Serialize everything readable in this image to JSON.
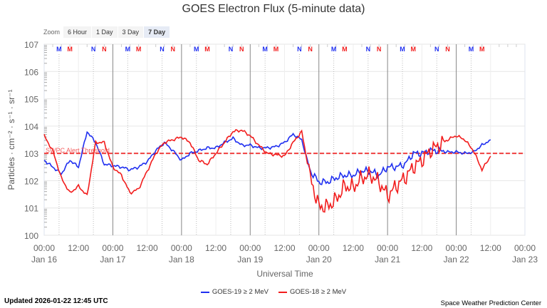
{
  "title": "GOES Electron Flux (5-minute data)",
  "zoom": {
    "label": "Zoom",
    "options": [
      "6 Hour",
      "1 Day",
      "3 Day",
      "7 Day"
    ],
    "selected": "7 Day"
  },
  "updated": "Updated 2026-01-22 12:45 UTC",
  "credit": "Space Weather Prediction Center",
  "colors": {
    "goes19": "#1f2ff0",
    "goes18": "#f21d1d",
    "threshold": "#f04040"
  },
  "chart_data": {
    "type": "line",
    "title": "GOES Electron Flux (5-minute data)",
    "xlabel": "Universal Time",
    "ylabel": "Particles · cm⁻² · s⁻¹ · sr⁻¹",
    "yscale": "log",
    "ylim_log10": [
      0,
      7
    ],
    "ytick_labels": [
      "100",
      "101",
      "102",
      "103",
      "104",
      "105",
      "106",
      "107"
    ],
    "xlim_hours_from_jan16": [
      0,
      168
    ],
    "xtick_labels": [
      [
        "00:00",
        "Jan 16"
      ],
      [
        "12:00",
        ""
      ],
      [
        "00:00",
        "Jan 17"
      ],
      [
        "12:00",
        ""
      ],
      [
        "00:00",
        "Jan 18"
      ],
      [
        "12:00",
        ""
      ],
      [
        "00:00",
        "Jan 19"
      ],
      [
        "12:00",
        ""
      ],
      [
        "00:00",
        "Jan 20"
      ],
      [
        "12:00",
        ""
      ],
      [
        "00:00",
        "Jan 21"
      ],
      [
        "12:00",
        ""
      ],
      [
        "00:00",
        "Jan 22"
      ],
      [
        "12:00",
        ""
      ],
      [
        "00:00",
        "Jan 23"
      ]
    ],
    "threshold": {
      "label": "SWPC Alert Threshold",
      "log10_value": 3
    },
    "x_hours_step": 3,
    "series": [
      {
        "name": "GOES-19 ≥ 2 MeV",
        "log10_values": [
          2.75,
          2.5,
          2.25,
          2.75,
          2.5,
          3.8,
          3.4,
          2.6,
          2.55,
          2.5,
          2.4,
          2.5,
          2.7,
          3.1,
          3.4,
          3.1,
          2.75,
          3.0,
          3.1,
          3.2,
          3.2,
          3.4,
          3.55,
          3.3,
          3.3,
          3.2,
          3.2,
          3.25,
          3.4,
          3.7,
          3.5,
          2.35,
          1.95,
          1.95,
          2.1,
          2.2,
          2.2,
          2.35,
          2.35,
          2.2,
          2.5,
          2.5,
          2.6,
          3.0,
          3.0,
          3.1,
          3.1,
          3.05,
          3.05,
          3.0,
          3.05,
          3.3,
          3.5
        ]
      },
      {
        "name": "GOES-18 ≥ 2 MeV",
        "log10_values": [
          3.65,
          3.1,
          2.1,
          1.55,
          1.8,
          1.45,
          3.4,
          3.4,
          2.5,
          2.2,
          1.55,
          1.7,
          2.35,
          3.0,
          3.4,
          3.5,
          3.6,
          3.4,
          2.75,
          2.6,
          3.0,
          3.4,
          3.8,
          3.85,
          3.65,
          3.3,
          3.0,
          2.95,
          2.9,
          3.4,
          3.8,
          2.1,
          1.05,
          1.05,
          1.3,
          1.8,
          1.75,
          2.1,
          2.2,
          1.95,
          1.45,
          1.8,
          2.1,
          2.5,
          2.75,
          3.1,
          3.3,
          3.5,
          3.65,
          3.5,
          3.1,
          2.4,
          2.9
        ]
      }
    ],
    "markers": {
      "days": 7,
      "per_day": [
        {
          "text": "M",
          "series": "GOES-19",
          "hour": 5.2
        },
        {
          "text": "M",
          "series": "GOES-18",
          "hour": 9
        },
        {
          "text": "N",
          "series": "GOES-19",
          "hour": 17.2
        },
        {
          "text": "N",
          "series": "GOES-18",
          "hour": 21
        }
      ],
      "last_day_only": [
        "M",
        "M"
      ]
    },
    "legend": "bottom-center"
  }
}
